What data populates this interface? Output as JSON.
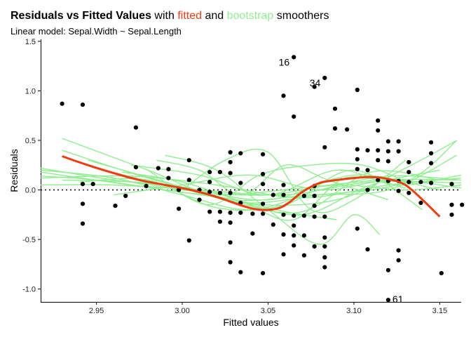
{
  "chart_data": {
    "type": "scatter",
    "title": {
      "bold": "Residuals vs Fitted Values",
      "plain1": " with ",
      "fitted_word": "fitted",
      "plain2": " and ",
      "bootstrap_word": "bootstrap",
      "plain3": " smoothers"
    },
    "subtitle": "Linear model: Sepal.Width ~ Sepal.Length",
    "xlabel": "Fitted values",
    "ylabel": "Residuals",
    "xlim": [
      2.9175,
      3.1625
    ],
    "ylim": [
      -1.13,
      1.52
    ],
    "xticks": [
      2.95,
      3.0,
      3.05,
      3.1,
      3.15
    ],
    "xtick_labels": [
      "2.95",
      "3.00",
      "3.05",
      "3.10",
      "3.15"
    ],
    "yticks": [
      -1.0,
      -0.5,
      0.0,
      0.5,
      1.0,
      1.5
    ],
    "ytick_labels": [
      "-1.0",
      "-0.5",
      "0.0",
      "0.5",
      "1.0",
      "1.5"
    ],
    "reference_line_y": 0,
    "colors": {
      "points": "#000000",
      "fitted": "#f23b11",
      "bootstrap": "#90ee90",
      "reference": "#000000"
    },
    "points": [
      [
        2.93,
        0.87
      ],
      [
        2.942,
        0.86
      ],
      [
        2.942,
        0.06
      ],
      [
        2.942,
        -0.14
      ],
      [
        2.942,
        -0.34
      ],
      [
        2.948,
        0.06
      ],
      [
        2.961,
        -0.16
      ],
      [
        2.967,
        -0.06
      ],
      [
        2.973,
        0.63
      ],
      [
        2.973,
        0.23
      ],
      [
        2.979,
        0.04
      ],
      [
        2.986,
        0.22
      ],
      [
        2.992,
        0.21
      ],
      [
        2.992,
        0.12
      ],
      [
        2.998,
        0.0
      ],
      [
        2.998,
        -0.19
      ],
      [
        3.004,
        0.3
      ],
      [
        3.004,
        0.1
      ],
      [
        3.004,
        -0.51
      ],
      [
        3.01,
        0.0
      ],
      [
        3.01,
        -0.1
      ],
      [
        3.016,
        0.18
      ],
      [
        3.016,
        0.08
      ],
      [
        3.016,
        -0.02
      ],
      [
        3.016,
        -0.22
      ],
      [
        3.022,
        0.18
      ],
      [
        3.022,
        -0.03
      ],
      [
        3.022,
        -0.22
      ],
      [
        3.022,
        -0.32
      ],
      [
        3.028,
        0.38
      ],
      [
        3.028,
        0.28
      ],
      [
        3.028,
        0.17
      ],
      [
        3.028,
        -0.03
      ],
      [
        3.028,
        -0.23
      ],
      [
        3.028,
        -0.33
      ],
      [
        3.028,
        -0.53
      ],
      [
        3.028,
        -0.73
      ],
      [
        3.034,
        0.37
      ],
      [
        3.034,
        0.07
      ],
      [
        3.034,
        -0.13
      ],
      [
        3.034,
        -0.23
      ],
      [
        3.034,
        -0.83
      ],
      [
        3.041,
        -0.24
      ],
      [
        3.041,
        -0.44
      ],
      [
        3.047,
        0.36
      ],
      [
        3.047,
        0.16
      ],
      [
        3.047,
        0.06
      ],
      [
        3.047,
        -0.14
      ],
      [
        3.047,
        -0.24
      ],
      [
        3.047,
        -0.84
      ],
      [
        3.053,
        -0.05
      ],
      [
        3.053,
        -0.35
      ],
      [
        3.059,
        0.95
      ],
      [
        3.059,
        0.05
      ],
      [
        3.059,
        -0.05
      ],
      [
        3.059,
        -0.25
      ],
      [
        3.059,
        -0.45
      ],
      [
        3.059,
        -0.65
      ],
      [
        3.065,
        1.34
      ],
      [
        3.065,
        0.74
      ],
      [
        3.065,
        -0.26
      ],
      [
        3.065,
        -0.36
      ],
      [
        3.065,
        -0.46
      ],
      [
        3.065,
        -0.56
      ],
      [
        3.071,
        -0.06
      ],
      [
        3.071,
        -0.26
      ],
      [
        3.071,
        -0.46
      ],
      [
        3.071,
        -0.66
      ],
      [
        3.077,
        1.04
      ],
      [
        3.077,
        0.04
      ],
      [
        3.077,
        -0.06
      ],
      [
        3.077,
        -0.16
      ],
      [
        3.077,
        -0.27
      ],
      [
        3.077,
        -0.57
      ],
      [
        3.083,
        1.13
      ],
      [
        3.083,
        0.43
      ],
      [
        3.083,
        -0.27
      ],
      [
        3.083,
        -0.48
      ],
      [
        3.083,
        -0.57
      ],
      [
        3.083,
        -0.68
      ],
      [
        3.083,
        -0.78
      ],
      [
        3.089,
        0.82
      ],
      [
        3.089,
        0.62
      ],
      [
        3.096,
        0.61
      ],
      [
        3.102,
        1.01
      ],
      [
        3.102,
        0.41
      ],
      [
        3.102,
        0.31
      ],
      [
        3.102,
        0.21
      ],
      [
        3.102,
        -0.39
      ],
      [
        3.108,
        0.4
      ],
      [
        3.108,
        0.2
      ],
      [
        3.108,
        0.0
      ],
      [
        3.108,
        -0.6
      ],
      [
        3.114,
        0.7
      ],
      [
        3.114,
        0.6
      ],
      [
        3.114,
        0.4
      ],
      [
        3.114,
        0.3
      ],
      [
        3.114,
        0.1
      ],
      [
        3.12,
        0.49
      ],
      [
        3.12,
        0.39
      ],
      [
        3.12,
        0.29
      ],
      [
        3.12,
        0.09
      ],
      [
        3.12,
        -0.81
      ],
      [
        3.126,
        0.49
      ],
      [
        3.126,
        0.39
      ],
      [
        3.126,
        0.09
      ],
      [
        3.126,
        -0.01
      ],
      [
        3.126,
        -0.61
      ],
      [
        3.126,
        -0.71
      ],
      [
        3.132,
        0.28
      ],
      [
        3.132,
        0.18
      ],
      [
        3.132,
        0.08
      ],
      [
        3.132,
        -0.03
      ],
      [
        3.139,
        0.08
      ],
      [
        3.139,
        -0.13
      ],
      [
        3.145,
        0.48
      ],
      [
        3.145,
        0.37
      ],
      [
        3.145,
        0.27
      ],
      [
        3.145,
        0.07
      ],
      [
        3.151,
        -0.84
      ],
      [
        3.157,
        0.06
      ],
      [
        3.157,
        -0.15
      ],
      [
        3.157,
        -0.25
      ],
      [
        3.163,
        -0.15
      ],
      [
        3.12,
        -1.11
      ]
    ],
    "labeled_points": [
      {
        "label": "16",
        "x": 3.065,
        "y": 1.34
      },
      {
        "label": "34",
        "x": 3.083,
        "y": 1.13
      },
      {
        "label": "61",
        "x": 3.12,
        "y": -1.11
      }
    ],
    "fitted_curve": {
      "name": "fitted",
      "x": [
        2.93,
        2.945,
        2.96,
        2.975,
        2.99,
        3.005,
        3.02,
        3.035,
        3.045,
        3.055,
        3.062,
        3.07,
        3.08,
        3.09,
        3.1,
        3.11,
        3.12,
        3.13,
        3.14,
        3.15
      ],
      "y": [
        0.34,
        0.25,
        0.17,
        0.1,
        0.05,
        0.0,
        -0.07,
        -0.16,
        -0.2,
        -0.19,
        -0.13,
        -0.02,
        0.07,
        0.1,
        0.12,
        0.13,
        0.11,
        0.05,
        -0.1,
        -0.27
      ]
    },
    "bootstrap_curves": [
      {
        "name": "bootstrap-1",
        "x": [
          2.9175,
          2.97,
          3.02,
          3.07,
          3.12,
          3.1625
        ],
        "y": [
          0.18,
          0.05,
          -0.05,
          0.02,
          0.1,
          0.02
        ]
      },
      {
        "name": "bootstrap-2",
        "x": [
          2.93,
          2.98,
          3.03,
          3.08,
          3.13,
          3.16
        ],
        "y": [
          0.52,
          0.2,
          -0.12,
          -0.05,
          0.08,
          0.5
        ]
      },
      {
        "name": "bootstrap-3",
        "x": [
          2.9175,
          2.96,
          3.0,
          3.05,
          3.1,
          3.15
        ],
        "y": [
          0.22,
          0.1,
          0.03,
          -0.1,
          0.15,
          0.0
        ]
      },
      {
        "name": "bootstrap-4",
        "x": [
          2.945,
          2.99,
          3.03,
          3.07,
          3.11,
          3.15
        ],
        "y": [
          0.3,
          0.08,
          -0.12,
          -0.22,
          0.18,
          0.1
        ]
      },
      {
        "name": "bootstrap-5",
        "x": [
          2.9175,
          2.97,
          3.02,
          3.07,
          3.12,
          3.1625
        ],
        "y": [
          0.12,
          0.14,
          0.05,
          -0.08,
          0.05,
          0.12
        ]
      },
      {
        "name": "bootstrap-6",
        "x": [
          2.93,
          2.98,
          3.03,
          3.075,
          3.12,
          3.16
        ],
        "y": [
          0.4,
          0.12,
          -0.1,
          -0.05,
          0.0,
          0.35
        ]
      },
      {
        "name": "bootstrap-7",
        "x": [
          2.9175,
          2.96,
          3.01,
          3.06,
          3.11,
          3.1625
        ],
        "y": [
          0.05,
          0.05,
          0.0,
          -0.05,
          0.08,
          0.07
        ]
      },
      {
        "name": "bootstrap-8",
        "x": [
          2.945,
          2.99,
          3.04,
          3.09,
          3.13,
          3.16
        ],
        "y": [
          0.1,
          0.05,
          -0.14,
          -0.1,
          0.22,
          0.5
        ]
      },
      {
        "name": "bootstrap-9",
        "x": [
          2.965,
          3.0,
          3.035,
          3.065,
          3.095,
          3.13
        ],
        "y": [
          0.18,
          0.08,
          -0.12,
          -0.3,
          0.12,
          0.02
        ]
      },
      {
        "name": "bootstrap-10",
        "x": [
          2.985,
          3.01,
          3.035,
          3.06,
          3.085,
          3.12
        ],
        "y": [
          0.3,
          0.2,
          -0.05,
          0.25,
          0.1,
          -0.1
        ]
      },
      {
        "name": "bootstrap-11",
        "x": [
          3.0,
          3.025,
          3.05,
          3.075,
          3.1,
          3.13
        ],
        "y": [
          0.0,
          0.3,
          0.38,
          -0.2,
          -0.1,
          0.3
        ]
      },
      {
        "name": "bootstrap-12",
        "x": [
          2.99,
          3.02,
          3.05,
          3.08,
          3.1,
          3.115
        ],
        "y": [
          0.35,
          0.2,
          -0.2,
          -0.55,
          -0.25,
          -0.45
        ]
      },
      {
        "name": "bootstrap-13",
        "x": [
          2.9175,
          2.96,
          3.0,
          3.04,
          3.08,
          3.12,
          3.1625
        ],
        "y": [
          0.2,
          0.12,
          -0.05,
          -0.2,
          0.0,
          0.14,
          0.1
        ]
      },
      {
        "name": "bootstrap-14",
        "x": [
          2.94,
          2.98,
          3.02,
          3.06,
          3.1,
          3.14
        ],
        "y": [
          0.08,
          0.1,
          -0.18,
          -0.15,
          0.2,
          -0.2
        ]
      },
      {
        "name": "bootstrap-15",
        "x": [
          2.95,
          2.99,
          3.03,
          3.07,
          3.11,
          3.15
        ],
        "y": [
          0.22,
          0.05,
          -0.1,
          -0.25,
          0.05,
          0.2
        ]
      },
      {
        "name": "bootstrap-16",
        "x": [
          2.9175,
          2.95,
          2.99,
          3.03,
          3.06,
          3.09
        ],
        "y": [
          0.14,
          0.1,
          0.0,
          -0.1,
          -0.22,
          -0.3
        ]
      },
      {
        "name": "bootstrap-17",
        "x": [
          2.97,
          3.01,
          3.05,
          3.09,
          3.125,
          3.1625
        ],
        "y": [
          0.25,
          0.15,
          -0.05,
          0.2,
          0.05,
          0.15
        ]
      },
      {
        "name": "bootstrap-18",
        "x": [
          2.96,
          3.0,
          3.04,
          3.08,
          3.12,
          3.16
        ],
        "y": [
          -0.05,
          0.05,
          0.15,
          0.0,
          0.1,
          0.1
        ]
      },
      {
        "name": "bootstrap-19",
        "x": [
          2.93,
          2.97,
          3.01,
          3.05,
          3.09,
          3.13,
          3.1625
        ],
        "y": [
          0.1,
          0.08,
          -0.02,
          -0.05,
          0.05,
          0.0,
          0.05
        ]
      },
      {
        "name": "bootstrap-20",
        "x": [
          2.98,
          3.015,
          3.045,
          3.075,
          3.105,
          3.135
        ],
        "y": [
          0.2,
          -0.15,
          0.15,
          0.25,
          0.25,
          0.05
        ]
      }
    ]
  }
}
